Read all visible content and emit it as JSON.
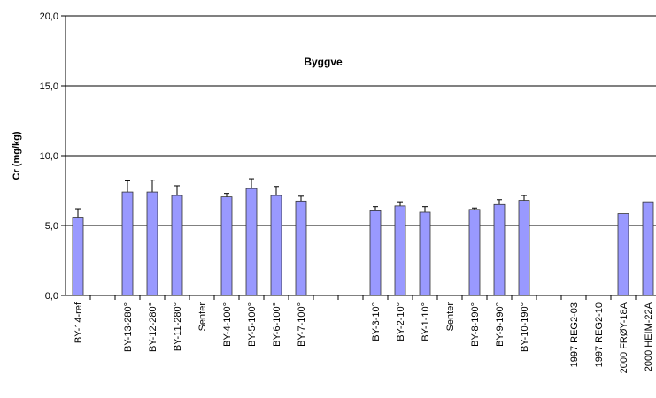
{
  "chart_data": {
    "type": "bar",
    "title": "Byggve",
    "y_label": "Cr (mg/kg)",
    "categories": [
      "BY-14-ref",
      null,
      "BY-13-280°",
      "BY-12-280°",
      "BY-11-280°",
      "Senter",
      "BY-4-100°",
      "BY-5-100°",
      "BY-6-100°",
      "BY-7-100°",
      null,
      null,
      "BY-3-10°",
      "BY-2-10°",
      "BY-1-10°",
      "Senter",
      "BY-8-190°",
      "BY-9-190°",
      "BY-10-190°",
      null,
      "1997 REG2-03",
      "1997 REG2-10",
      "2000 FRØY-18A",
      "2000 HEIM-22A"
    ],
    "values": [
      5.6,
      null,
      7.4,
      7.4,
      7.15,
      null,
      7.05,
      7.65,
      7.15,
      6.75,
      null,
      null,
      6.05,
      6.4,
      5.95,
      null,
      6.15,
      6.5,
      6.8,
      null,
      null,
      null,
      5.85,
      6.7
    ],
    "errors": [
      0.6,
      null,
      0.8,
      0.85,
      0.7,
      null,
      0.25,
      0.7,
      0.65,
      0.35,
      null,
      null,
      0.3,
      0.3,
      0.4,
      null,
      0.1,
      0.35,
      0.35,
      null,
      null,
      null,
      null,
      null
    ],
    "color": "#9999ff",
    "ylim": [
      0,
      20
    ],
    "yticks": [
      {
        "value": 0,
        "label": "0,0"
      },
      {
        "value": 5,
        "label": "5,0"
      },
      {
        "value": 10,
        "label": "10,0"
      },
      {
        "value": 15,
        "label": "15,0"
      },
      {
        "value": 20,
        "label": "20,0"
      }
    ],
    "grid": true
  }
}
